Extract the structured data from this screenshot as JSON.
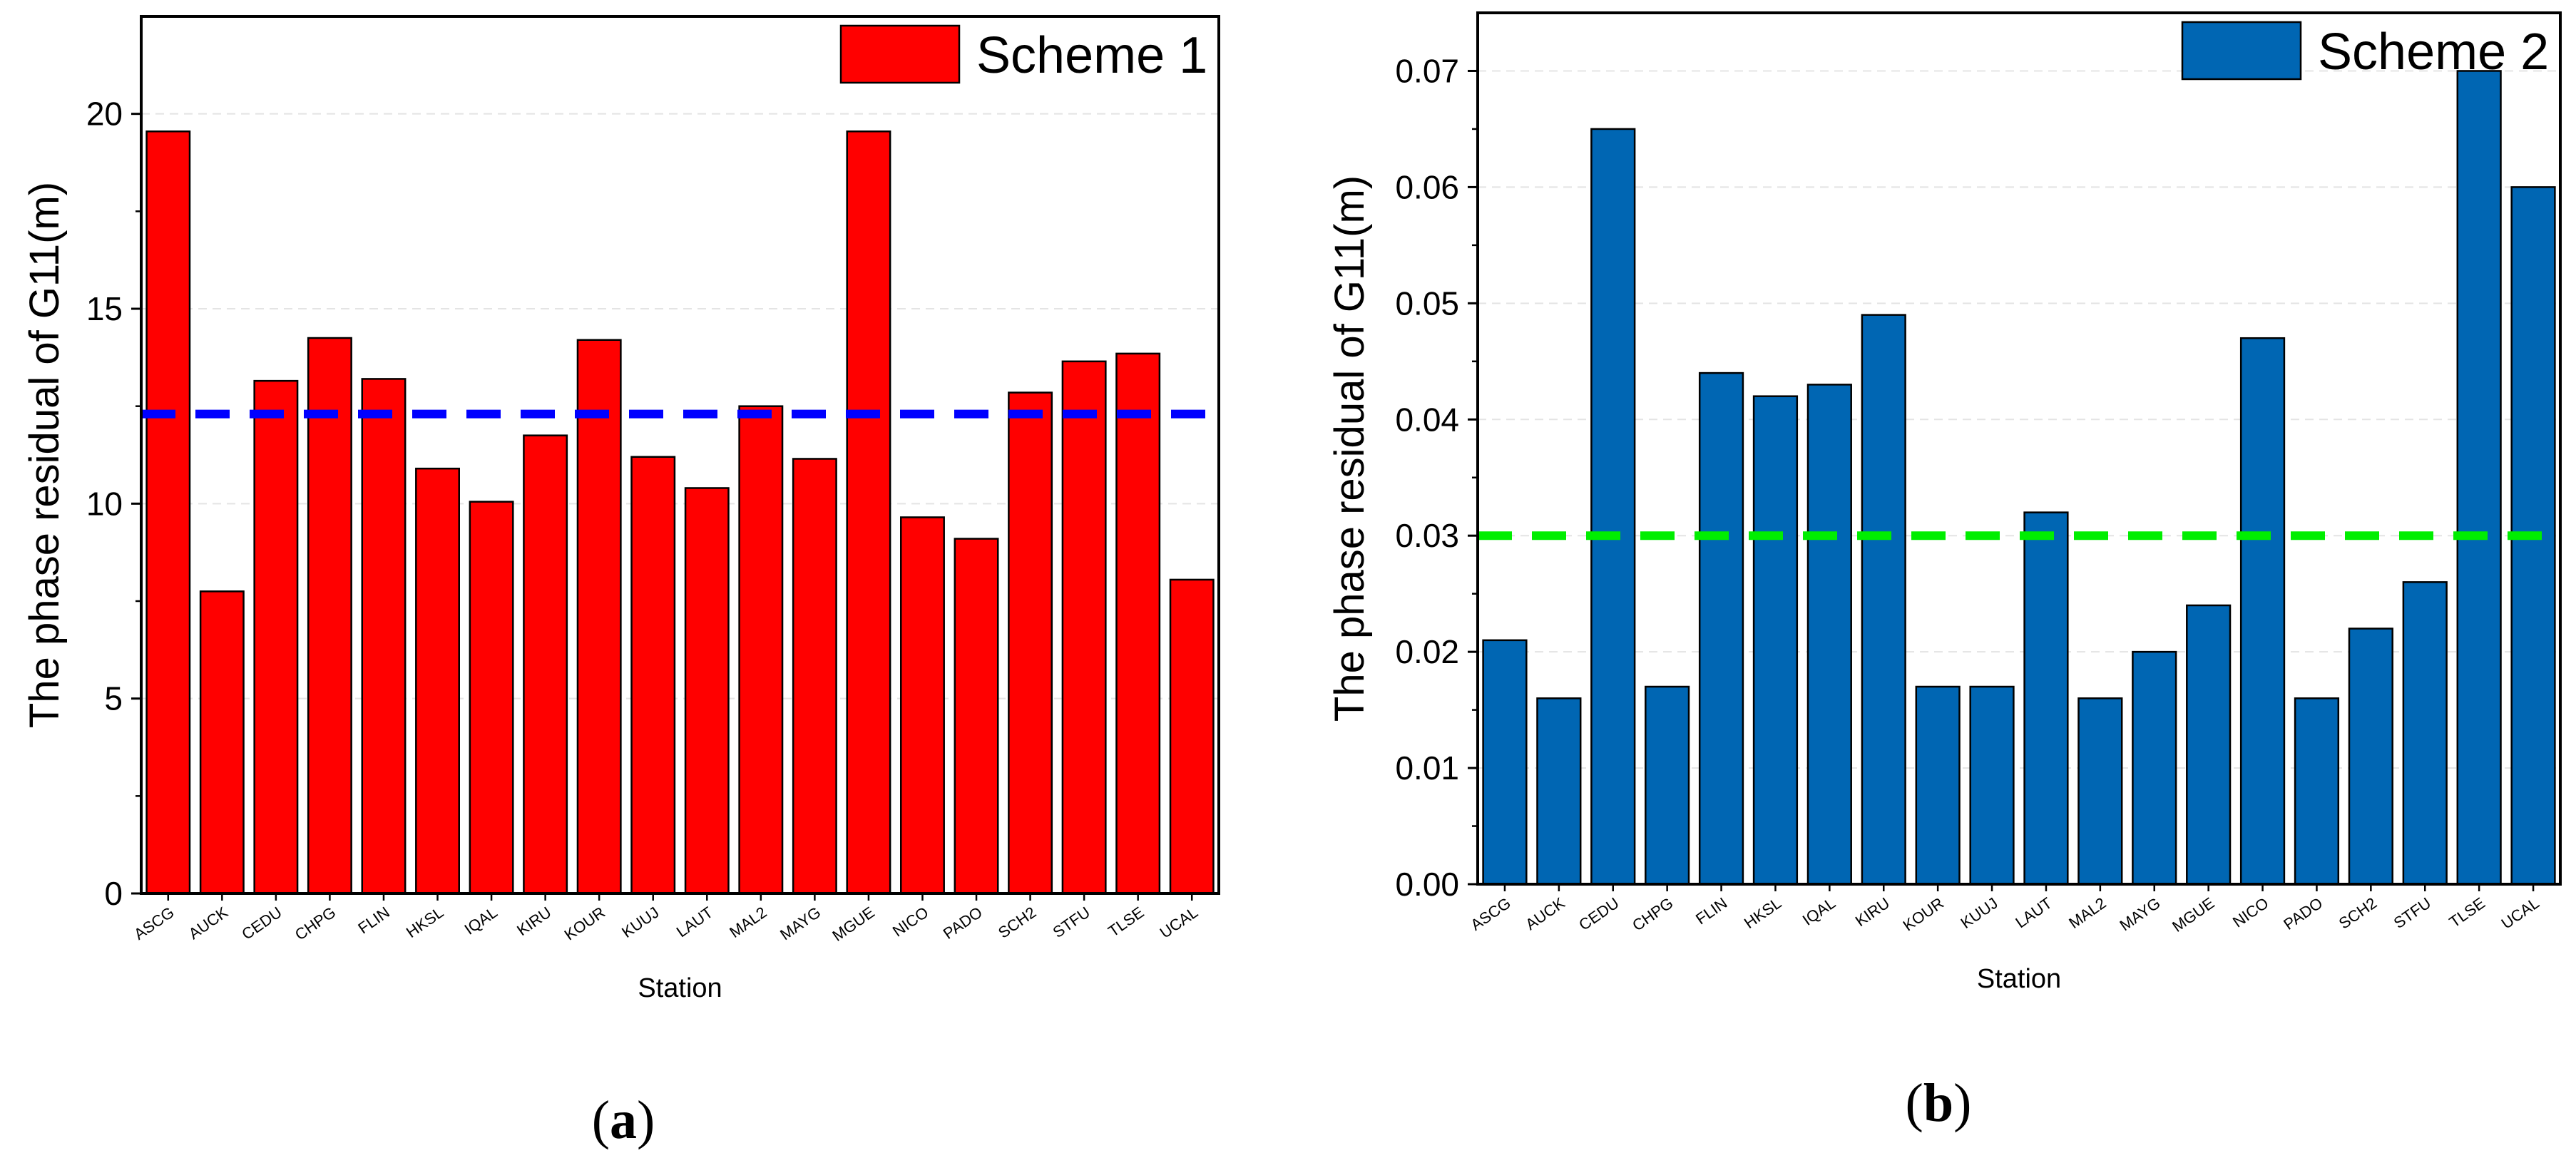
{
  "chart_data": [
    {
      "type": "bar",
      "panel_label": "a",
      "xlabel": "Station",
      "ylabel": "The phase residual of G11(m)",
      "categories": [
        "ASCG",
        "AUCK",
        "CEDU",
        "CHPG",
        "FLIN",
        "HKSL",
        "IQAL",
        "KIRU",
        "KOUR",
        "KUUJ",
        "LAUT",
        "MAL2",
        "MAYG",
        "MGUE",
        "NICO",
        "PADO",
        "SCH2",
        "STFU",
        "TLSE",
        "UCAL"
      ],
      "series": [
        {
          "name": "Scheme 1",
          "values": [
            19.55,
            7.75,
            13.15,
            14.25,
            13.2,
            10.9,
            10.05,
            11.75,
            14.2,
            11.2,
            10.4,
            12.5,
            11.15,
            19.55,
            9.65,
            9.1,
            12.85,
            13.65,
            13.85,
            8.05
          ]
        }
      ],
      "reference_line": {
        "value": 12.3
      },
      "ylim": [
        0,
        22.5
      ],
      "yticks": [
        0,
        5,
        10,
        15,
        20
      ],
      "ytick_labels": [
        "0",
        "5",
        "10",
        "15",
        "20"
      ],
      "grid": true,
      "legend": "top-right",
      "colors": {
        "bar": "#ff0000",
        "reference_line": "#0000ff"
      }
    },
    {
      "type": "bar",
      "panel_label": "b",
      "xlabel": "Station",
      "ylabel": "The phase residual of G11(m)",
      "categories": [
        "ASCG",
        "AUCK",
        "CEDU",
        "CHPG",
        "FLIN",
        "HKSL",
        "IQAL",
        "KIRU",
        "KOUR",
        "KUUJ",
        "LAUT",
        "MAL2",
        "MAYG",
        "MGUE",
        "NICO",
        "PADO",
        "SCH2",
        "STFU",
        "TLSE",
        "UCAL"
      ],
      "series": [
        {
          "name": "Scheme 2",
          "values": [
            0.021,
            0.016,
            0.065,
            0.017,
            0.044,
            0.042,
            0.043,
            0.049,
            0.017,
            0.017,
            0.032,
            0.016,
            0.02,
            0.024,
            0.047,
            0.016,
            0.022,
            0.026,
            0.07,
            0.06
          ]
        }
      ],
      "reference_line": {
        "value": 0.03
      },
      "ylim": [
        0,
        0.075
      ],
      "yticks": [
        0,
        0.01,
        0.02,
        0.03,
        0.04,
        0.05,
        0.06,
        0.07
      ],
      "ytick_labels": [
        "0.00",
        "0.01",
        "0.02",
        "0.03",
        "0.04",
        "0.05",
        "0.06",
        "0.07"
      ],
      "grid": true,
      "legend": "top-right",
      "colors": {
        "bar": "#0066b3",
        "reference_line": "#00ee00"
      }
    }
  ]
}
